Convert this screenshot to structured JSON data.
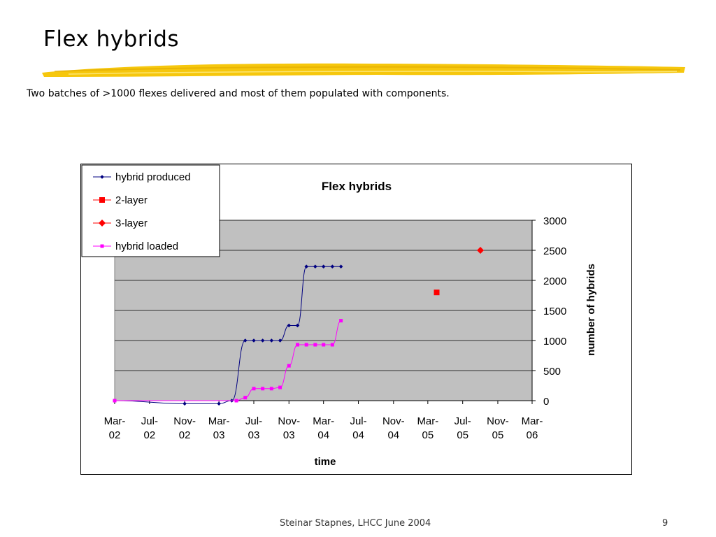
{
  "slide": {
    "title": "Flex hybrids",
    "subtitle": "Two batches of >1000 flexes delivered and most of them populated with components.",
    "footer": "Steinar Stapnes, LHCC June 2004",
    "page_number": "9",
    "highlight_color": "#f5c400"
  },
  "chart_data": {
    "type": "line",
    "title": "Flex hybrids",
    "xlabel": "time",
    "ylabel": "number of hybrids",
    "ylim": [
      0,
      3000
    ],
    "yticks": [
      0,
      500,
      1000,
      1500,
      2000,
      2500,
      3000
    ],
    "xlim": [
      "2002-03",
      "2006-03"
    ],
    "xticks": [
      {
        "date": "2002-03",
        "label": [
          "Mar-",
          "02"
        ]
      },
      {
        "date": "2002-07",
        "label": [
          "Jul-",
          "02"
        ]
      },
      {
        "date": "2002-11",
        "label": [
          "Nov-",
          "02"
        ]
      },
      {
        "date": "2003-03",
        "label": [
          "Mar-",
          "03"
        ]
      },
      {
        "date": "2003-07",
        "label": [
          "Jul-",
          "03"
        ]
      },
      {
        "date": "2003-11",
        "label": [
          "Nov-",
          "03"
        ]
      },
      {
        "date": "2004-03",
        "label": [
          "Mar-",
          "04"
        ]
      },
      {
        "date": "2004-07",
        "label": [
          "Jul-",
          "04"
        ]
      },
      {
        "date": "2004-11",
        "label": [
          "Nov-",
          "04"
        ]
      },
      {
        "date": "2005-03",
        "label": [
          "Mar-",
          "05"
        ]
      },
      {
        "date": "2005-07",
        "label": [
          "Jul-",
          "05"
        ]
      },
      {
        "date": "2005-11",
        "label": [
          "Nov-",
          "05"
        ]
      },
      {
        "date": "2006-03",
        "label": [
          "Mar-",
          "06"
        ]
      }
    ],
    "grid": true,
    "plot_background": "#c0c0c0",
    "legend_position": "top-left",
    "series": [
      {
        "name": "hybrid produced",
        "color": "#000080",
        "marker": "diamond-small",
        "line": true,
        "points": [
          [
            "2002-03-01",
            0
          ],
          [
            "2002-11-01",
            -50
          ],
          [
            "2003-03-01",
            -50
          ],
          [
            "2003-04-15",
            0
          ],
          [
            "2003-06-01",
            1000
          ],
          [
            "2003-07-01",
            1000
          ],
          [
            "2003-08-01",
            1000
          ],
          [
            "2003-09-01",
            1000
          ],
          [
            "2003-10-01",
            1000
          ],
          [
            "2003-11-01",
            1250
          ],
          [
            "2003-12-01",
            1250
          ],
          [
            "2004-01-01",
            2230
          ],
          [
            "2004-02-01",
            2230
          ],
          [
            "2004-03-01",
            2230
          ],
          [
            "2004-04-01",
            2230
          ],
          [
            "2004-05-01",
            2230
          ]
        ]
      },
      {
        "name": "2-layer",
        "color": "#ff0000",
        "marker": "square",
        "line": false,
        "points": [
          [
            "2005-04-01",
            1800
          ]
        ]
      },
      {
        "name": "3-layer",
        "color": "#ff0000",
        "marker": "diamond",
        "line": false,
        "points": [
          [
            "2005-09-01",
            2500
          ]
        ]
      },
      {
        "name": "hybrid loaded",
        "color": "#ff00ff",
        "marker": "square-small",
        "line": true,
        "points": [
          [
            "2002-03-01",
            0
          ],
          [
            "2003-05-01",
            0
          ],
          [
            "2003-06-01",
            50
          ],
          [
            "2003-07-01",
            200
          ],
          [
            "2003-08-01",
            200
          ],
          [
            "2003-09-01",
            200
          ],
          [
            "2003-10-01",
            220
          ],
          [
            "2003-11-01",
            580
          ],
          [
            "2003-12-01",
            930
          ],
          [
            "2004-01-01",
            930
          ],
          [
            "2004-02-01",
            930
          ],
          [
            "2004-03-01",
            930
          ],
          [
            "2004-04-01",
            930
          ],
          [
            "2004-05-01",
            1330
          ]
        ]
      }
    ]
  }
}
